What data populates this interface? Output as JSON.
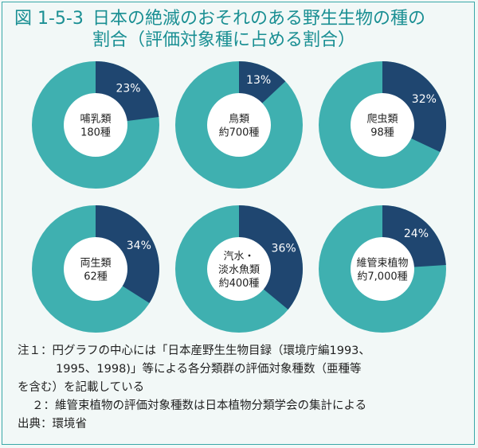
{
  "title": {
    "figure_number": "図 1-5-3",
    "line1": "日本の絶滅のおそれのある野生生物の種の",
    "line2": "割合（評価対象種に占める割合）"
  },
  "colors": {
    "threatened": "#1f4670",
    "other": "#3fb0b0",
    "center": "#ffffff"
  },
  "chart_data": [
    {
      "type": "pie",
      "group": "哺乳類",
      "count": "180種",
      "value_label": "23%",
      "values": [
        23,
        77
      ]
    },
    {
      "type": "pie",
      "group": "鳥類",
      "count": "約700種",
      "value_label": "13%",
      "values": [
        13,
        87
      ]
    },
    {
      "type": "pie",
      "group": "爬虫類",
      "count": "98種",
      "value_label": "32%",
      "values": [
        32,
        68
      ]
    },
    {
      "type": "pie",
      "group": "両生類",
      "count": "62種",
      "value_label": "34%",
      "values": [
        34,
        66
      ]
    },
    {
      "type": "pie",
      "group": "汽水・\n淡水魚類",
      "count": "約400種",
      "value_label": "36%",
      "values": [
        36,
        64
      ]
    },
    {
      "type": "pie",
      "group": "維管束植物",
      "count": "約7,000種",
      "value_label": "24%",
      "values": [
        24,
        76
      ]
    }
  ],
  "notes": {
    "note1_label": "注１：",
    "note1_line1": "円グラフの中心には「日本産野生生物目録（環境庁編1993、",
    "note1_line2": "1995、1998)」等による各分類群の評価対象種数（亜種等",
    "note1_line3": "を含む）を記載している",
    "note2_label": "２：",
    "note2_text": "維管束植物の評価対象種数は日本植物分類学会の集計による",
    "source_label": "出典：",
    "source_text": "環境省"
  }
}
